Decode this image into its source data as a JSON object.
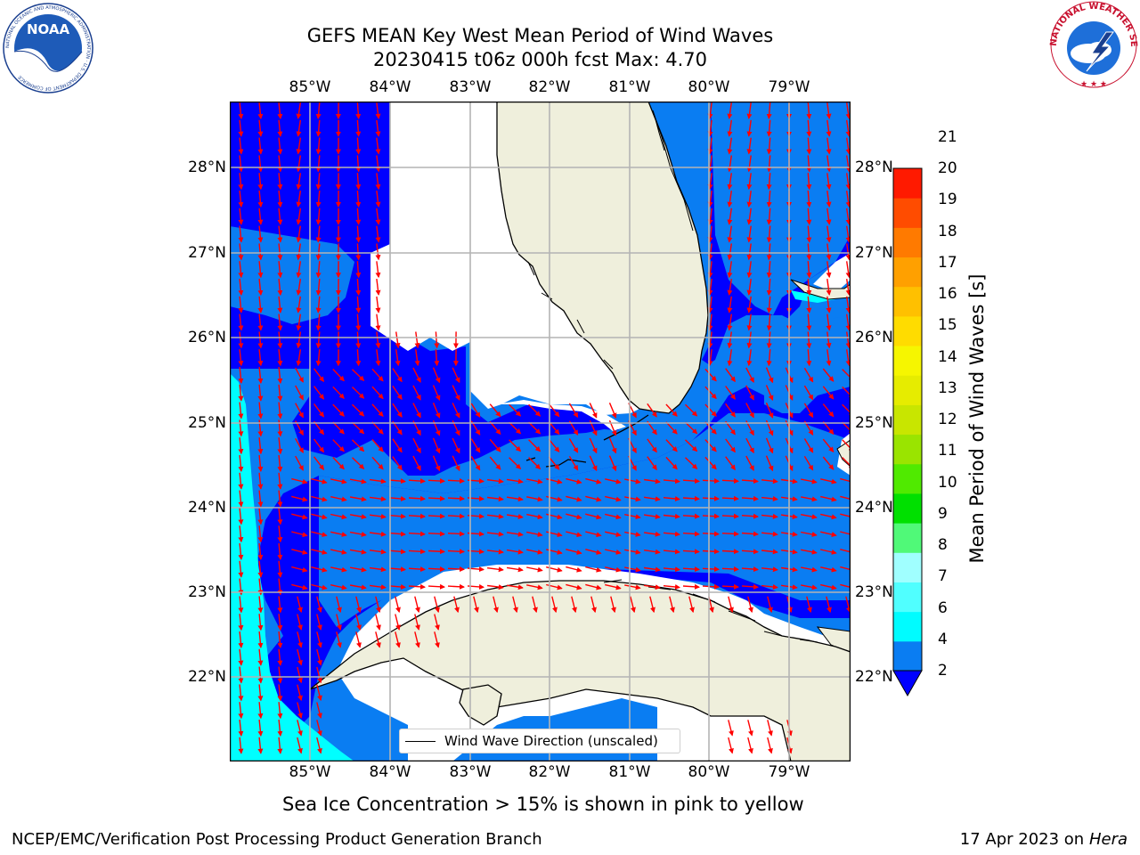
{
  "header": {
    "title_line1": "GEFS MEAN Key West Mean Period of Wind Waves",
    "title_line2": "20230415 t06z 000h fcst   Max: 4.70"
  },
  "logos": {
    "noaa": "NOAA",
    "noaa_ring": "NATIONAL OCEANIC AND ATMOSPHERIC ADMINISTRATION · U.S. DEPARTMENT OF COMMERCE",
    "nws_ring": "NATIONAL WEATHER SERVICE"
  },
  "map": {
    "lon_labels": [
      "85°W",
      "84°W",
      "83°W",
      "82°W",
      "81°W",
      "80°W",
      "79°W"
    ],
    "lat_labels": [
      "28°N",
      "27°N",
      "26°N",
      "25°N",
      "24°N",
      "23°N",
      "22°N"
    ],
    "legend_label": "Wind Wave Direction (unscaled)",
    "colors": {
      "ocean_dark": "#0000ff",
      "ocean_mid": "#0a7df2",
      "ocean_cyan": "#00ffff",
      "land": "#efefdc",
      "arrow": "#ff0000",
      "grid": "#b4b4b4"
    }
  },
  "colorbar": {
    "label": "Mean Period of Wind Waves [s]",
    "ticks": [
      "2",
      "4",
      "6",
      "7",
      "8",
      "9",
      "10",
      "11",
      "12",
      "13",
      "14",
      "15",
      "16",
      "17",
      "18",
      "19",
      "20",
      "21"
    ],
    "colors": [
      "#0a7df2",
      "#00fcff",
      "#50ffff",
      "#a0ffff",
      "#50f978",
      "#00e000",
      "#50ea00",
      "#9ae400",
      "#c8e600",
      "#e6ec00",
      "#f6f600",
      "#ffdc00",
      "#ffc000",
      "#ffa000",
      "#ff7a00",
      "#ff4c00",
      "#ff1a00"
    ],
    "under_color": "#0000ff"
  },
  "footer": {
    "note": "Sea Ice Concentration > 15% is shown in pink to yellow",
    "credit": "NCEP/EMC/Verification Post Processing Product Generation Branch",
    "date": "17 Apr 2023 on ",
    "host": "Hera"
  }
}
